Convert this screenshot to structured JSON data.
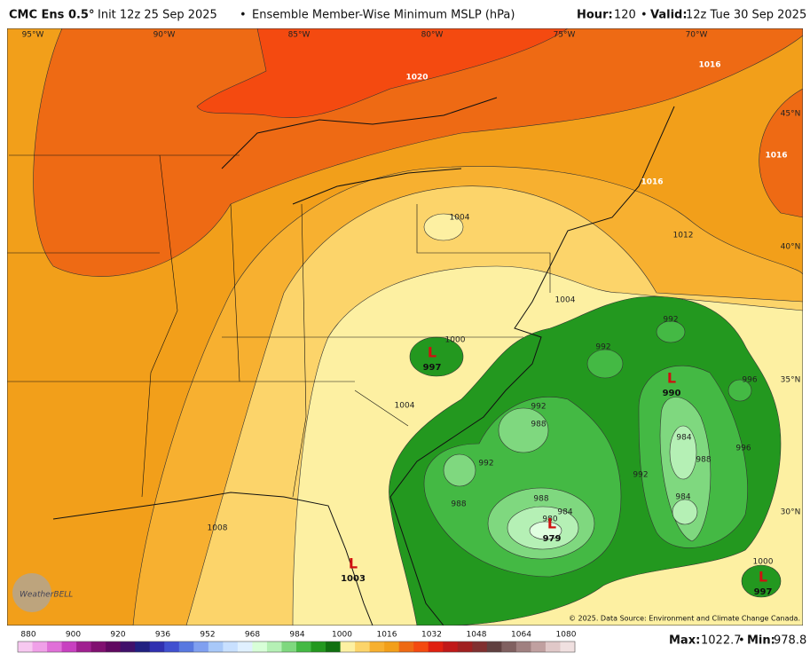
{
  "header": {
    "model": "CMC Ens 0.5°",
    "init": "Init 12z 25 Sep 2025",
    "separator": "•",
    "product": "Ensemble Member-Wise Minimum MSLP (hPa)",
    "hour_label": "Hour:",
    "hour": 120,
    "valid_label": "Valid:",
    "valid": "12z Tue 30 Sep 2025"
  },
  "map": {
    "lon_labels": [
      "95°W",
      "90°W",
      "85°W",
      "80°W",
      "75°W",
      "70°W"
    ],
    "lat_labels": [
      "45°N",
      "40°N",
      "35°N",
      "30°N"
    ],
    "contour_labels": [
      1020,
      1016,
      1016,
      1016,
      1012,
      1004,
      1004,
      1000,
      1004,
      992,
      992,
      996,
      992,
      988,
      984,
      988,
      992,
      996,
      992,
      988,
      988,
      984,
      980,
      984,
      1008,
      1000
    ],
    "lows": [
      {
        "symbol": "L",
        "value": 997
      },
      {
        "symbol": "L",
        "value": 990
      },
      {
        "symbol": "L",
        "value": 979
      },
      {
        "symbol": "L",
        "value": 1003
      },
      {
        "symbol": "L",
        "value": 997
      }
    ],
    "credit": "© 2025. Data Source: Environment and Climate Change Canada.",
    "logo": "WeatherBELL"
  },
  "colorbar": {
    "labels": [
      880,
      900,
      920,
      936,
      952,
      968,
      984,
      1000,
      1016,
      1032,
      1048,
      1064,
      1080
    ],
    "colors": [
      "#f7c8f0",
      "#f0a0e8",
      "#e070d8",
      "#c840c0",
      "#a02090",
      "#801070",
      "#600860",
      "#40106a",
      "#202080",
      "#3030b0",
      "#4050d0",
      "#5878e0",
      "#80a0f0",
      "#a8c8f8",
      "#c8e0ff",
      "#e0f0ff",
      "#d8ffd8",
      "#b5f0b5",
      "#7fd87f",
      "#44b944",
      "#23981f",
      "#107010",
      "#fdf0a2",
      "#fcd46a",
      "#f7b030",
      "#f29f1a",
      "#ee6a14",
      "#f44a10",
      "#e02010",
      "#c01818",
      "#a02020",
      "#803030",
      "#604040",
      "#806060",
      "#a08080",
      "#c0a0a0",
      "#e0c8c8",
      "#f0e0e0"
    ]
  },
  "footer": {
    "max_label": "Max:",
    "max": 1022.7,
    "separator": "•",
    "min_label": "Min:",
    "min": 978.8
  }
}
